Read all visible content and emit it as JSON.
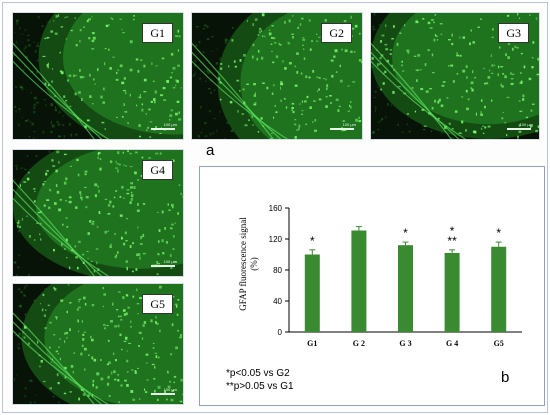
{
  "panels": [
    {
      "label": "G1",
      "scale_text": "100 µm"
    },
    {
      "label": "G2",
      "scale_text": "100 µm"
    },
    {
      "label": "G3",
      "scale_text": "100 µm"
    },
    {
      "label": "G4",
      "scale_text": "100 µm"
    },
    {
      "label": "G5",
      "scale_text": "100 µm"
    }
  ],
  "figure_labels": {
    "a": "a",
    "b": "b"
  },
  "notes": {
    "line1": "*p<0.05  vs G2",
    "line2": "**p>0.05 vs G1"
  },
  "colors": {
    "bar": "#3a8a32",
    "tissue": "#39c239",
    "background": "#061306"
  },
  "chart_data": {
    "type": "bar",
    "categories": [
      "G1",
      "G 2",
      "G 3",
      "G 4",
      "G5"
    ],
    "values": [
      100,
      131,
      112,
      102,
      110
    ],
    "errors": [
      6,
      5,
      4,
      4,
      6
    ],
    "annotations": [
      "*",
      "",
      "*",
      "*\n**",
      "*"
    ],
    "ylabel": "GFAP fluorescence signal (%)",
    "ylim": [
      0,
      160
    ],
    "yticks": [
      0,
      40,
      80,
      120,
      160
    ],
    "grid": false
  }
}
